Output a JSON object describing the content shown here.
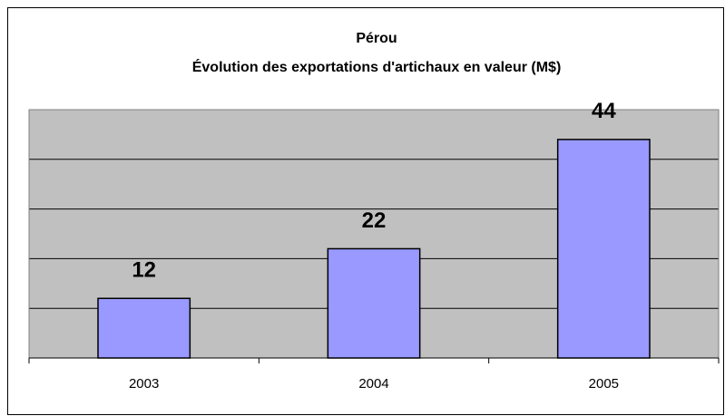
{
  "chart_data": {
    "type": "bar",
    "title": "Pérou",
    "subtitle": "Évolution des exportations d'artichaux en valeur (M$)",
    "categories": [
      "2003",
      "2004",
      "2005"
    ],
    "values": [
      12,
      22,
      44
    ],
    "color": "#9999ff",
    "ylim": [
      0,
      50
    ],
    "yticks": [
      0,
      10,
      20,
      30,
      40,
      50
    ],
    "grid": true
  }
}
